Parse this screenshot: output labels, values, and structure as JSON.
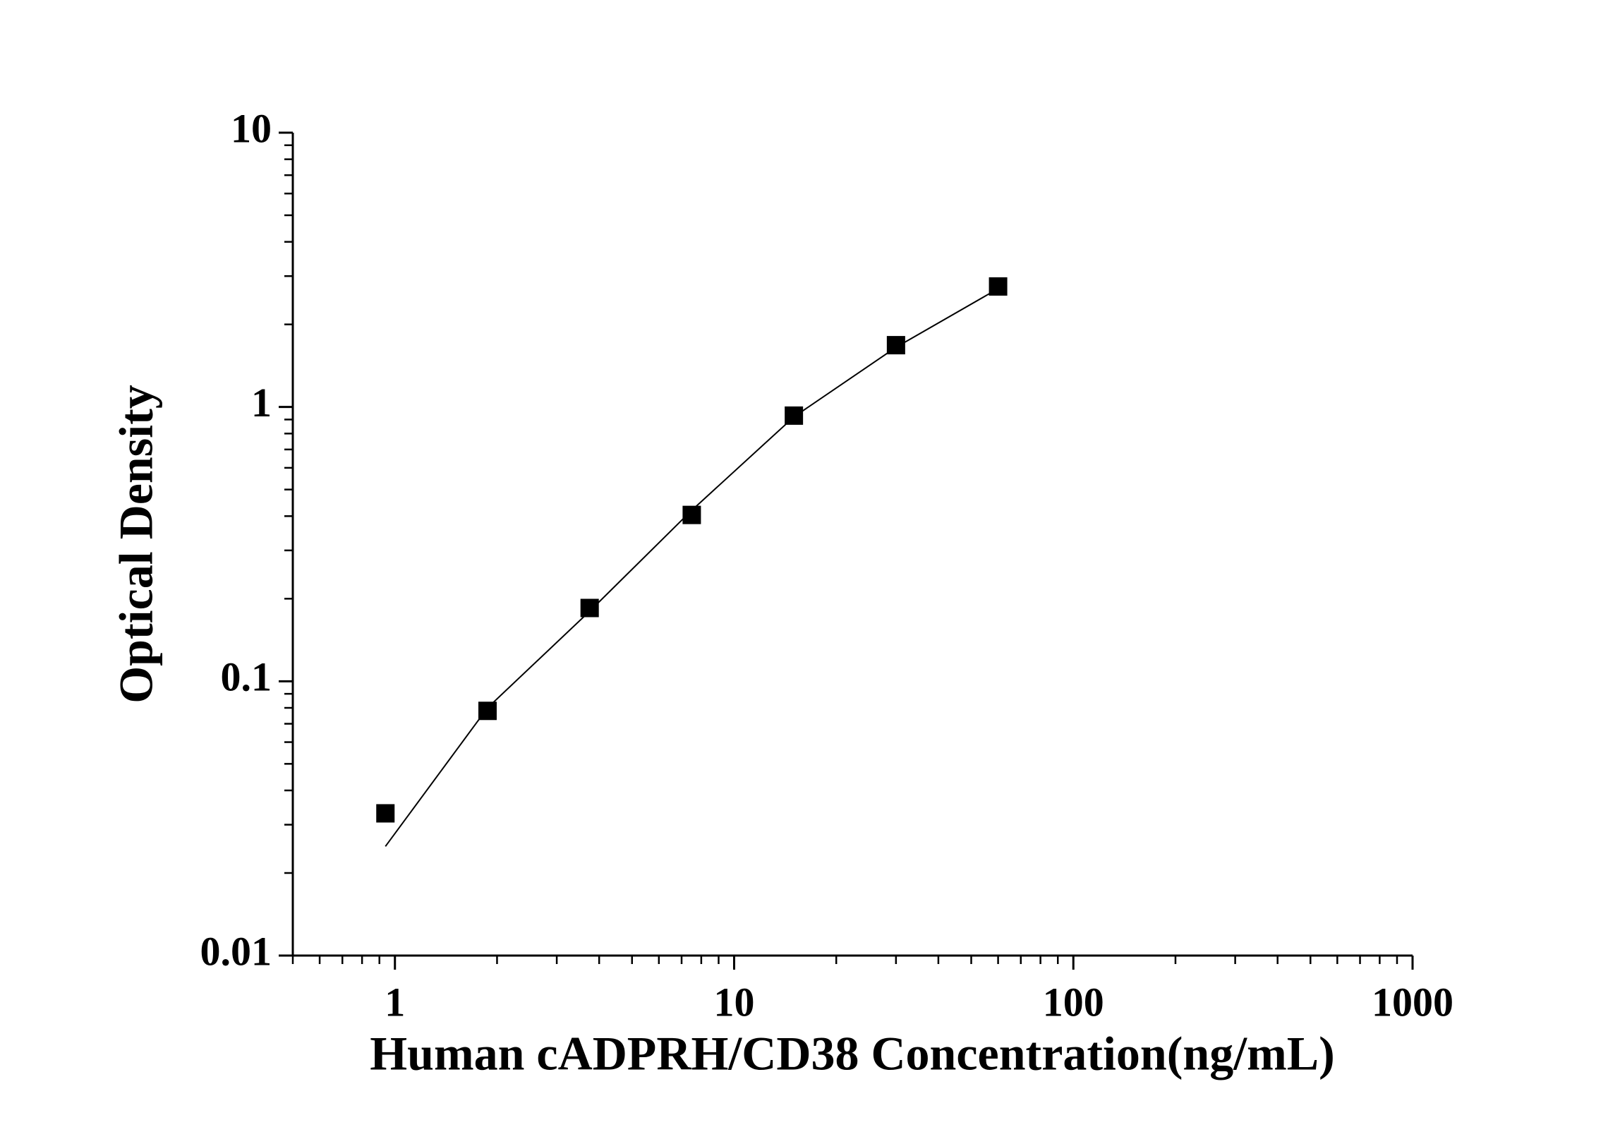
{
  "chart_data": {
    "type": "scatter",
    "x_label": "Human cADPRH/CD38 Concentration(ng/mL)",
    "y_label": "Optical Density",
    "x": [
      0.9375,
      1.875,
      3.75,
      7.5,
      15,
      30,
      60
    ],
    "values": [
      0.033,
      0.078,
      0.185,
      0.404,
      0.93,
      1.68,
      2.75
    ],
    "color": "#000000",
    "fit": {
      "x": [
        0.9375,
        1.875,
        3.75,
        7.5,
        15,
        30,
        60
      ],
      "values": [
        0.025,
        0.08,
        0.18,
        0.42,
        0.92,
        1.65,
        2.7
      ],
      "color": "#000000"
    },
    "xlog": true,
    "ylog": true,
    "xlim": [
      0.5,
      1000
    ],
    "ylim": [
      0.01,
      10
    ],
    "xticks": [
      1,
      10,
      100,
      1000
    ],
    "yticks": [
      0.01,
      0.1,
      1,
      10
    ]
  }
}
